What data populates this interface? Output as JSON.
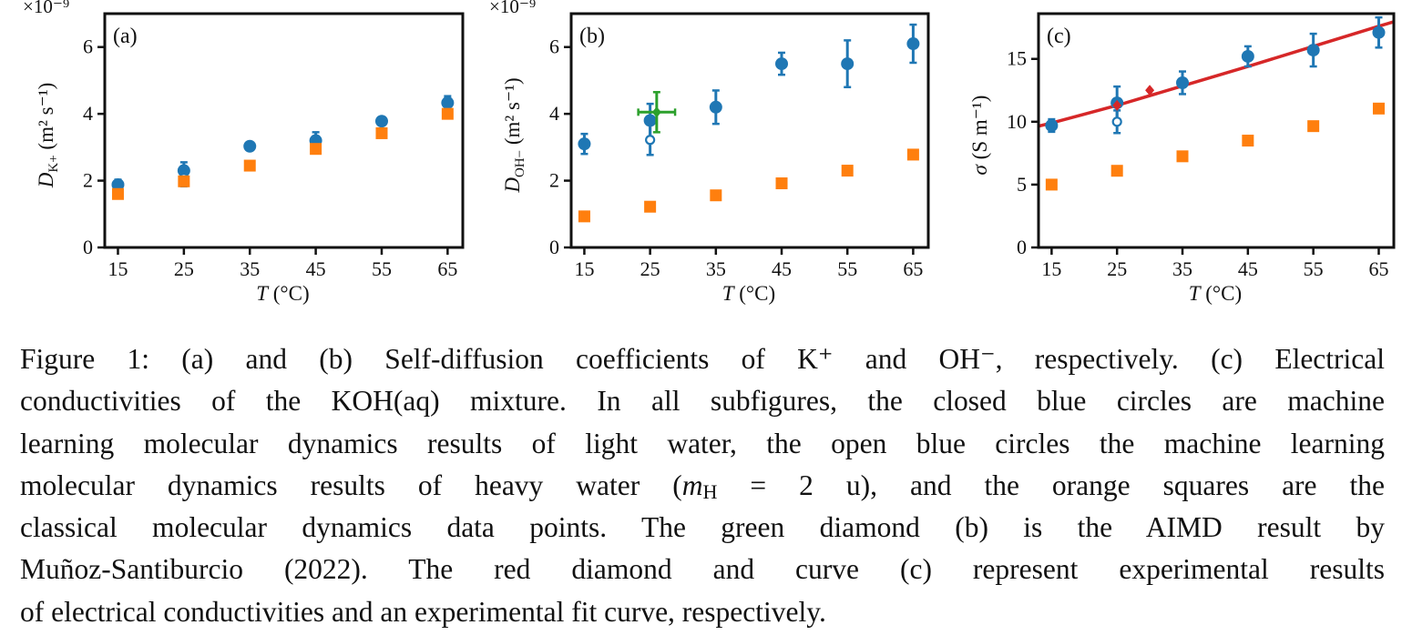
{
  "chart_data": [
    {
      "type": "scatter",
      "panel_label": "(a)",
      "multiplier": "×10⁻⁹",
      "xlabel": "T (°C)",
      "ylabel": {
        "symbol": "D",
        "subscript": "K+",
        "units": "(m² s⁻¹)"
      },
      "xlim": [
        13,
        67.3
      ],
      "ylim": [
        0,
        7
      ],
      "xticks": [
        15,
        25,
        35,
        45,
        55,
        65
      ],
      "yticks": [
        0,
        2,
        4,
        6
      ],
      "ytick_labels": [
        "0",
        "2",
        "4",
        "6"
      ],
      "grid": false,
      "series": [
        {
          "kind": "mlmd_light",
          "marker": "closed-circle",
          "color": "#1f77b4",
          "x": [
            15,
            25,
            35,
            45,
            55,
            65
          ],
          "y": [
            1.88,
            2.3,
            3.03,
            3.2,
            3.78,
            4.33
          ],
          "yerr": [
            0.15,
            0.25,
            0.05,
            0.25,
            0.04,
            0.2
          ]
        },
        {
          "kind": "mlmd_heavy",
          "marker": "open-circle",
          "color": "#1f77b4",
          "x": [
            25
          ],
          "y": [
            2.08
          ],
          "yerr": [
            0.25
          ]
        },
        {
          "kind": "classical_md",
          "marker": "square",
          "color": "#ff7f0e",
          "x": [
            15,
            25,
            35,
            45,
            55,
            65
          ],
          "y": [
            1.6,
            1.98,
            2.45,
            2.95,
            3.42,
            4.0
          ]
        }
      ]
    },
    {
      "type": "scatter",
      "panel_label": "(b)",
      "multiplier": "×10⁻⁹",
      "xlabel": "T (°C)",
      "ylabel": {
        "symbol": "D",
        "subscript": "OH−",
        "units": "(m² s⁻¹)"
      },
      "xlim": [
        13,
        67.3
      ],
      "ylim": [
        0,
        7
      ],
      "xticks": [
        15,
        25,
        35,
        45,
        55,
        65
      ],
      "yticks": [
        0,
        2,
        4,
        6
      ],
      "ytick_labels": [
        "0",
        "2",
        "4",
        "6"
      ],
      "grid": false,
      "series": [
        {
          "kind": "mlmd_light",
          "marker": "closed-circle",
          "color": "#1f77b4",
          "x": [
            15,
            25,
            35,
            45,
            55,
            65
          ],
          "y": [
            3.1,
            3.8,
            4.2,
            5.5,
            5.5,
            6.1
          ],
          "yerr": [
            0.3,
            0.5,
            0.5,
            0.33,
            0.7,
            0.57
          ]
        },
        {
          "kind": "mlmd_heavy",
          "marker": "open-circle",
          "color": "#1f77b4",
          "x": [
            25
          ],
          "y": [
            3.22
          ],
          "yerr": [
            0.45
          ]
        },
        {
          "kind": "classical_md",
          "marker": "square",
          "color": "#ff7f0e",
          "x": [
            15,
            25,
            35,
            45,
            55,
            65
          ],
          "y": [
            0.93,
            1.22,
            1.56,
            1.92,
            2.3,
            2.78
          ]
        },
        {
          "kind": "aimd",
          "marker": "diamond",
          "color": "#2ca02c",
          "x": [
            26
          ],
          "y": [
            4.05
          ],
          "xerr": [
            2.8
          ],
          "yerr": [
            0.6
          ]
        }
      ]
    },
    {
      "type": "scatter",
      "panel_label": "(c)",
      "multiplier": "",
      "xlabel": "T (°C)",
      "ylabel": {
        "symbol": "σ",
        "subscript": "",
        "units": "(S m⁻¹)"
      },
      "xlim": [
        13,
        67.3
      ],
      "ylim": [
        0,
        18.6
      ],
      "xticks": [
        15,
        25,
        35,
        45,
        55,
        65
      ],
      "yticks": [
        0,
        5,
        10,
        15
      ],
      "ytick_labels": [
        "0",
        "5",
        "10",
        "15"
      ],
      "grid": false,
      "series": [
        {
          "kind": "experimental_fit",
          "marker": "line",
          "color": "#d62728",
          "x": [
            13,
            15,
            25,
            35,
            45,
            55,
            65,
            67.3
          ],
          "y": [
            9.65,
            9.9,
            11.3,
            12.85,
            14.4,
            16.0,
            17.6,
            17.95
          ]
        },
        {
          "kind": "mlmd_light",
          "marker": "closed-circle",
          "color": "#1f77b4",
          "x": [
            15,
            25,
            35,
            45,
            55,
            65
          ],
          "y": [
            9.7,
            11.5,
            13.1,
            15.2,
            15.7,
            17.1
          ],
          "yerr": [
            0.5,
            1.3,
            0.9,
            0.8,
            1.3,
            1.2
          ]
        },
        {
          "kind": "mlmd_heavy",
          "marker": "open-circle",
          "color": "#1f77b4",
          "x": [
            25
          ],
          "y": [
            10.0
          ],
          "yerr": [
            0.9
          ]
        },
        {
          "kind": "classical_md",
          "marker": "square",
          "color": "#ff7f0e",
          "x": [
            15,
            25,
            35,
            45,
            55,
            65
          ],
          "y": [
            5.0,
            6.1,
            7.25,
            8.5,
            9.65,
            11.05
          ]
        },
        {
          "kind": "experimental",
          "marker": "diamond",
          "color": "#d62728",
          "x": [
            25,
            30
          ],
          "y": [
            11.3,
            12.5
          ]
        }
      ]
    }
  ],
  "caption": {
    "line1": "Figure 1: (a) and (b) Self-diffusion coefficients of K⁺ and OH⁻, respectively. (c) Electrical",
    "line2": "conductivities of the KOH(aq) mixture. In all subfigures, the closed blue circles are machine",
    "line3": "learning molecular dynamics results of light water, the open blue circles the machine learning",
    "line4_a": "molecular dynamics results of heavy water (",
    "line4_m": "m",
    "line4_sub": "H",
    "line4_b": " = 2 u), and the orange squares are the",
    "line5": "classical molecular dynamics data points. The green diamond (b) is the AIMD result by",
    "line6": "Muñoz-Santiburcio (2022). The red diamond and curve (c) represent experimental results",
    "line7": "of electrical conductivities and an experimental fit curve, respectively."
  }
}
